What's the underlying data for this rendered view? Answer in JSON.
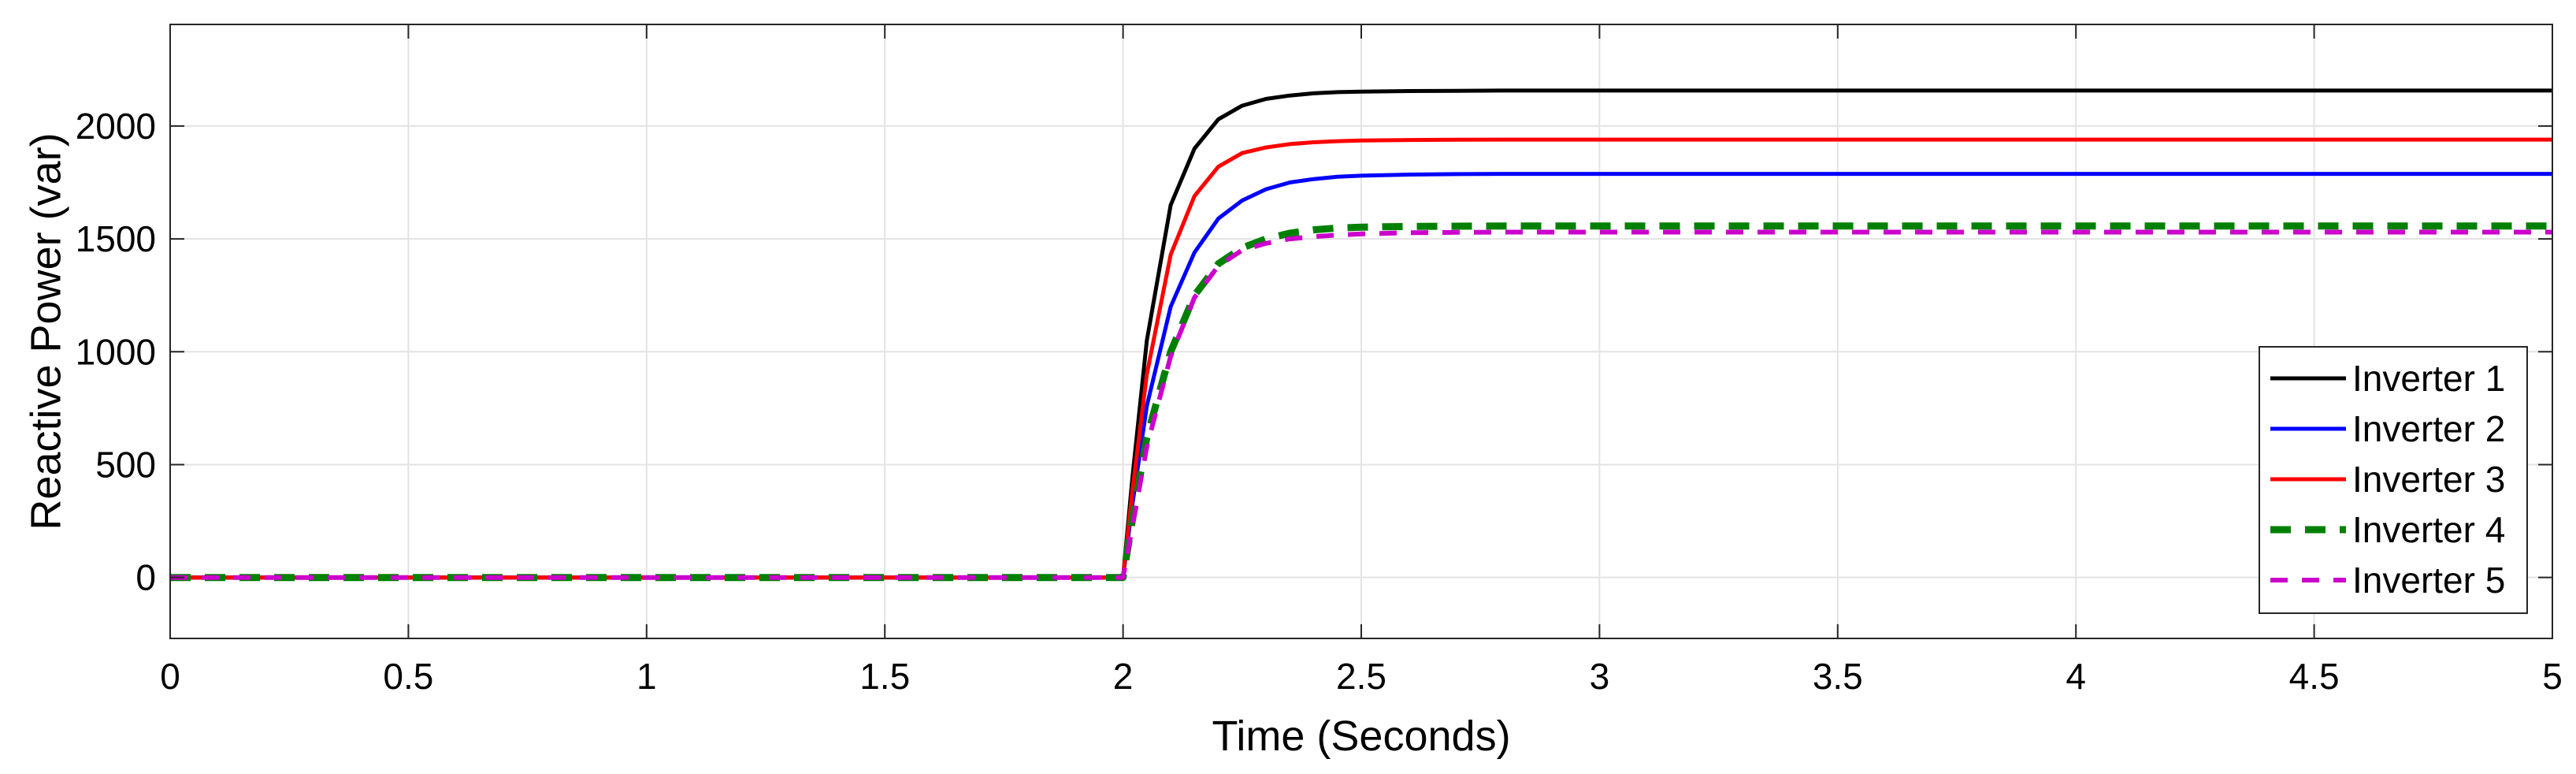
{
  "chart_data": {
    "type": "line",
    "title": "",
    "xlabel": "Time (Seconds)",
    "ylabel": "Reactive Power (var)",
    "xlim": [
      0,
      5
    ],
    "ylim": [
      -270,
      2450
    ],
    "xticks": [
      0,
      0.5,
      1,
      1.5,
      2,
      2.5,
      3,
      3.5,
      4,
      4.5,
      5
    ],
    "xtick_labels": [
      "0",
      "0.5",
      "1",
      "1.5",
      "2",
      "2.5",
      "3",
      "3.5",
      "4",
      "4.5",
      "5"
    ],
    "yticks": [
      0,
      500,
      1000,
      1500,
      2000
    ],
    "ytick_labels": [
      "0",
      "500",
      "1000",
      "1500",
      "2000"
    ],
    "grid": true,
    "legend_position": "lower-right",
    "series": [
      {
        "name": "Inverter 1",
        "color": "#000000",
        "style": "solid",
        "x": [
          0,
          2.0,
          2.02,
          2.05,
          2.1,
          2.15,
          2.2,
          2.25,
          2.3,
          2.35,
          2.4,
          2.45,
          2.5,
          2.6,
          2.7,
          2.8,
          3.0,
          4.0,
          5.0
        ],
        "y": [
          0,
          0,
          450,
          1050,
          1650,
          1900,
          2030,
          2090,
          2120,
          2135,
          2145,
          2150,
          2152,
          2155,
          2156,
          2157,
          2157,
          2157,
          2157
        ]
      },
      {
        "name": "Inverter 2",
        "color": "#0000ff",
        "style": "solid",
        "x": [
          0,
          2.0,
          2.02,
          2.05,
          2.1,
          2.15,
          2.2,
          2.25,
          2.3,
          2.35,
          2.4,
          2.45,
          2.5,
          2.6,
          2.7,
          2.8,
          3.0,
          4.0,
          5.0
        ],
        "y": [
          0,
          0,
          330,
          760,
          1200,
          1440,
          1590,
          1670,
          1720,
          1750,
          1765,
          1775,
          1780,
          1785,
          1787,
          1788,
          1788,
          1788,
          1788
        ]
      },
      {
        "name": "Inverter 3",
        "color": "#ff0000",
        "style": "solid",
        "x": [
          0,
          2.0,
          2.02,
          2.05,
          2.1,
          2.15,
          2.2,
          2.25,
          2.3,
          2.35,
          2.4,
          2.45,
          2.5,
          2.6,
          2.7,
          2.8,
          3.0,
          4.0,
          5.0
        ],
        "y": [
          0,
          0,
          390,
          900,
          1430,
          1690,
          1820,
          1880,
          1905,
          1920,
          1928,
          1933,
          1936,
          1938,
          1939,
          1940,
          1940,
          1940,
          1940
        ]
      },
      {
        "name": "Inverter 4",
        "color": "#008000",
        "style": "dash-thick",
        "x": [
          0,
          2.0,
          2.02,
          2.05,
          2.1,
          2.15,
          2.2,
          2.25,
          2.3,
          2.35,
          2.4,
          2.45,
          2.5,
          2.6,
          2.7,
          2.8,
          3.0,
          4.0,
          5.0
        ],
        "y": [
          0,
          0,
          260,
          620,
          1000,
          1250,
          1390,
          1460,
          1500,
          1525,
          1540,
          1548,
          1552,
          1555,
          1556,
          1557,
          1557,
          1557,
          1557
        ]
      },
      {
        "name": "Inverter 5",
        "color": "#cc00cc",
        "style": "dash",
        "x": [
          0,
          2.0,
          2.02,
          2.05,
          2.1,
          2.15,
          2.2,
          2.25,
          2.3,
          2.35,
          2.4,
          2.45,
          2.5,
          2.6,
          2.7,
          2.8,
          3.0,
          4.0,
          5.0
        ],
        "y": [
          0,
          0,
          230,
          580,
          980,
          1240,
          1380,
          1450,
          1480,
          1500,
          1510,
          1517,
          1522,
          1527,
          1529,
          1530,
          1530,
          1530,
          1530
        ]
      }
    ]
  }
}
